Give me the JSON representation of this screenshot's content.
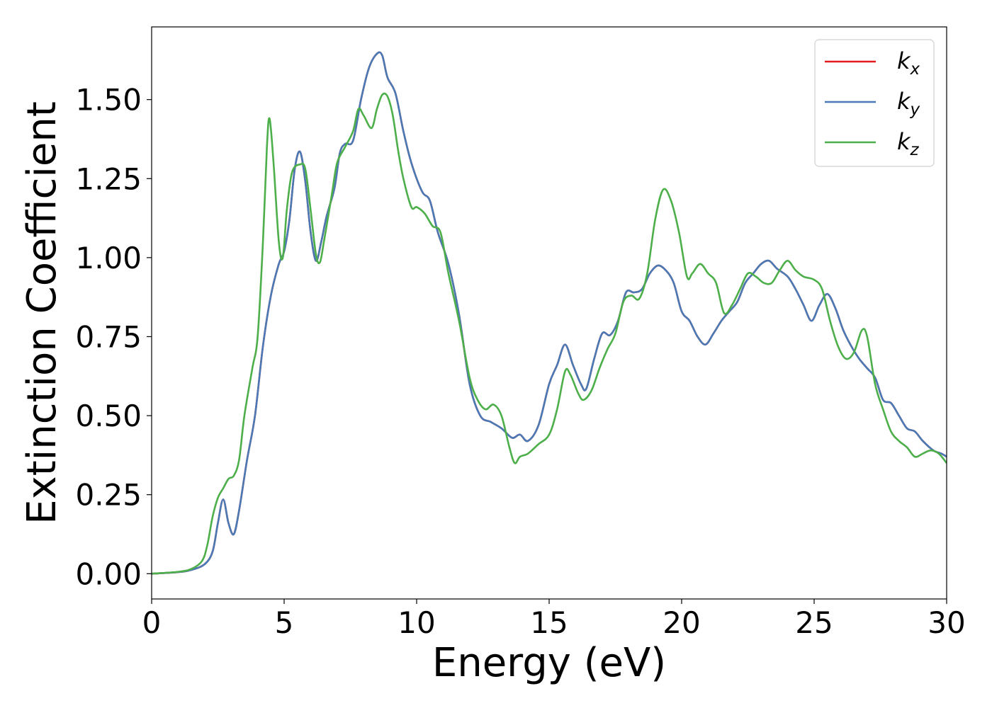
{
  "chart_data": {
    "type": "line",
    "xlabel": "Energy (eV)",
    "ylabel": "Extinction Coefficient",
    "xlim": [
      0,
      30
    ],
    "ylim": [
      -0.08,
      1.73
    ],
    "xticks": [
      0,
      5,
      10,
      15,
      20,
      25,
      30
    ],
    "xtick_labels": [
      "0",
      "5",
      "10",
      "15",
      "20",
      "25",
      "30"
    ],
    "yticks": [
      0,
      0.25,
      0.5,
      0.75,
      1.0,
      1.25,
      1.5
    ],
    "ytick_labels": [
      "0.00",
      "0.25",
      "0.50",
      "0.75",
      "1.00",
      "1.25",
      "1.50"
    ],
    "grid": false,
    "legend_position": "top-right",
    "series": [
      {
        "name": "kx",
        "label_base": "k",
        "label_sub": "x",
        "color": "#e41a1c",
        "points": [
          [
            0,
            0
          ],
          [
            1,
            0.005
          ],
          [
            1.5,
            0.012
          ],
          [
            2,
            0.03
          ],
          [
            2.3,
            0.07
          ],
          [
            2.5,
            0.16
          ],
          [
            2.7,
            0.235
          ],
          [
            2.9,
            0.16
          ],
          [
            3.1,
            0.125
          ],
          [
            3.3,
            0.2
          ],
          [
            3.6,
            0.36
          ],
          [
            3.9,
            0.5
          ],
          [
            4.2,
            0.72
          ],
          [
            4.5,
            0.88
          ],
          [
            4.8,
            0.98
          ],
          [
            5.0,
            1.02
          ],
          [
            5.2,
            1.12
          ],
          [
            5.4,
            1.28
          ],
          [
            5.6,
            1.335
          ],
          [
            5.8,
            1.24
          ],
          [
            6.0,
            1.08
          ],
          [
            6.2,
            0.99
          ],
          [
            6.4,
            1.05
          ],
          [
            6.6,
            1.13
          ],
          [
            6.9,
            1.22
          ],
          [
            7.1,
            1.33
          ],
          [
            7.3,
            1.36
          ],
          [
            7.6,
            1.37
          ],
          [
            7.9,
            1.5
          ],
          [
            8.2,
            1.6
          ],
          [
            8.5,
            1.645
          ],
          [
            8.7,
            1.64
          ],
          [
            8.9,
            1.57
          ],
          [
            9.2,
            1.52
          ],
          [
            9.5,
            1.4
          ],
          [
            9.8,
            1.3
          ],
          [
            10.2,
            1.21
          ],
          [
            10.5,
            1.18
          ],
          [
            10.8,
            1.08
          ],
          [
            11.2,
            0.98
          ],
          [
            11.6,
            0.82
          ],
          [
            12.0,
            0.6
          ],
          [
            12.4,
            0.5
          ],
          [
            12.8,
            0.48
          ],
          [
            13.2,
            0.46
          ],
          [
            13.6,
            0.43
          ],
          [
            13.9,
            0.44
          ],
          [
            14.2,
            0.42
          ],
          [
            14.6,
            0.47
          ],
          [
            15.0,
            0.6
          ],
          [
            15.3,
            0.66
          ],
          [
            15.6,
            0.725
          ],
          [
            15.9,
            0.66
          ],
          [
            16.2,
            0.6
          ],
          [
            16.4,
            0.585
          ],
          [
            16.7,
            0.68
          ],
          [
            17.0,
            0.76
          ],
          [
            17.3,
            0.755
          ],
          [
            17.6,
            0.8
          ],
          [
            17.9,
            0.89
          ],
          [
            18.2,
            0.89
          ],
          [
            18.5,
            0.9
          ],
          [
            18.8,
            0.95
          ],
          [
            19.1,
            0.975
          ],
          [
            19.4,
            0.96
          ],
          [
            19.7,
            0.92
          ],
          [
            20.0,
            0.83
          ],
          [
            20.3,
            0.8
          ],
          [
            20.6,
            0.75
          ],
          [
            20.9,
            0.725
          ],
          [
            21.2,
            0.76
          ],
          [
            21.5,
            0.8
          ],
          [
            21.8,
            0.83
          ],
          [
            22.1,
            0.86
          ],
          [
            22.4,
            0.92
          ],
          [
            22.7,
            0.95
          ],
          [
            23.0,
            0.98
          ],
          [
            23.3,
            0.99
          ],
          [
            23.6,
            0.965
          ],
          [
            24.0,
            0.94
          ],
          [
            24.3,
            0.9
          ],
          [
            24.6,
            0.85
          ],
          [
            24.9,
            0.8
          ],
          [
            25.2,
            0.85
          ],
          [
            25.5,
            0.885
          ],
          [
            25.8,
            0.84
          ],
          [
            26.1,
            0.77
          ],
          [
            26.4,
            0.72
          ],
          [
            26.7,
            0.68
          ],
          [
            27.0,
            0.65
          ],
          [
            27.3,
            0.62
          ],
          [
            27.6,
            0.55
          ],
          [
            27.9,
            0.54
          ],
          [
            28.2,
            0.5
          ],
          [
            28.5,
            0.46
          ],
          [
            28.8,
            0.45
          ],
          [
            29.1,
            0.42
          ],
          [
            29.5,
            0.39
          ],
          [
            29.8,
            0.38
          ],
          [
            30.0,
            0.37
          ]
        ]
      },
      {
        "name": "ky",
        "label_base": "k",
        "label_sub": "y",
        "color": "#4a7ab5",
        "points": [
          [
            0,
            0
          ],
          [
            1,
            0.005
          ],
          [
            1.5,
            0.012
          ],
          [
            2,
            0.03
          ],
          [
            2.3,
            0.07
          ],
          [
            2.5,
            0.16
          ],
          [
            2.7,
            0.235
          ],
          [
            2.9,
            0.16
          ],
          [
            3.1,
            0.125
          ],
          [
            3.3,
            0.2
          ],
          [
            3.6,
            0.36
          ],
          [
            3.9,
            0.5
          ],
          [
            4.2,
            0.72
          ],
          [
            4.5,
            0.88
          ],
          [
            4.8,
            0.98
          ],
          [
            5.0,
            1.02
          ],
          [
            5.2,
            1.12
          ],
          [
            5.4,
            1.28
          ],
          [
            5.6,
            1.335
          ],
          [
            5.8,
            1.24
          ],
          [
            6.0,
            1.08
          ],
          [
            6.2,
            0.99
          ],
          [
            6.4,
            1.05
          ],
          [
            6.6,
            1.13
          ],
          [
            6.9,
            1.22
          ],
          [
            7.1,
            1.33
          ],
          [
            7.3,
            1.36
          ],
          [
            7.6,
            1.37
          ],
          [
            7.9,
            1.5
          ],
          [
            8.2,
            1.6
          ],
          [
            8.5,
            1.645
          ],
          [
            8.7,
            1.64
          ],
          [
            8.9,
            1.57
          ],
          [
            9.2,
            1.52
          ],
          [
            9.5,
            1.4
          ],
          [
            9.8,
            1.3
          ],
          [
            10.2,
            1.21
          ],
          [
            10.5,
            1.18
          ],
          [
            10.8,
            1.08
          ],
          [
            11.2,
            0.98
          ],
          [
            11.6,
            0.82
          ],
          [
            12.0,
            0.6
          ],
          [
            12.4,
            0.5
          ],
          [
            12.8,
            0.48
          ],
          [
            13.2,
            0.46
          ],
          [
            13.6,
            0.43
          ],
          [
            13.9,
            0.44
          ],
          [
            14.2,
            0.42
          ],
          [
            14.6,
            0.47
          ],
          [
            15.0,
            0.6
          ],
          [
            15.3,
            0.66
          ],
          [
            15.6,
            0.725
          ],
          [
            15.9,
            0.66
          ],
          [
            16.2,
            0.6
          ],
          [
            16.4,
            0.585
          ],
          [
            16.7,
            0.68
          ],
          [
            17.0,
            0.76
          ],
          [
            17.3,
            0.755
          ],
          [
            17.6,
            0.8
          ],
          [
            17.9,
            0.89
          ],
          [
            18.2,
            0.89
          ],
          [
            18.5,
            0.9
          ],
          [
            18.8,
            0.95
          ],
          [
            19.1,
            0.975
          ],
          [
            19.4,
            0.96
          ],
          [
            19.7,
            0.92
          ],
          [
            20.0,
            0.83
          ],
          [
            20.3,
            0.8
          ],
          [
            20.6,
            0.75
          ],
          [
            20.9,
            0.725
          ],
          [
            21.2,
            0.76
          ],
          [
            21.5,
            0.8
          ],
          [
            21.8,
            0.83
          ],
          [
            22.1,
            0.86
          ],
          [
            22.4,
            0.92
          ],
          [
            22.7,
            0.95
          ],
          [
            23.0,
            0.98
          ],
          [
            23.3,
            0.99
          ],
          [
            23.6,
            0.965
          ],
          [
            24.0,
            0.94
          ],
          [
            24.3,
            0.9
          ],
          [
            24.6,
            0.85
          ],
          [
            24.9,
            0.8
          ],
          [
            25.2,
            0.85
          ],
          [
            25.5,
            0.885
          ],
          [
            25.8,
            0.84
          ],
          [
            26.1,
            0.77
          ],
          [
            26.4,
            0.72
          ],
          [
            26.7,
            0.68
          ],
          [
            27.0,
            0.65
          ],
          [
            27.3,
            0.62
          ],
          [
            27.6,
            0.55
          ],
          [
            27.9,
            0.54
          ],
          [
            28.2,
            0.5
          ],
          [
            28.5,
            0.46
          ],
          [
            28.8,
            0.45
          ],
          [
            29.1,
            0.42
          ],
          [
            29.5,
            0.39
          ],
          [
            29.8,
            0.38
          ],
          [
            30.0,
            0.37
          ]
        ]
      },
      {
        "name": "kz",
        "label_base": "k",
        "label_sub": "z",
        "color": "#4daf4a",
        "points": [
          [
            0,
            0
          ],
          [
            1,
            0.006
          ],
          [
            1.5,
            0.015
          ],
          [
            1.9,
            0.04
          ],
          [
            2.1,
            0.09
          ],
          [
            2.3,
            0.18
          ],
          [
            2.5,
            0.24
          ],
          [
            2.7,
            0.27
          ],
          [
            2.9,
            0.3
          ],
          [
            3.1,
            0.31
          ],
          [
            3.3,
            0.36
          ],
          [
            3.5,
            0.5
          ],
          [
            3.8,
            0.65
          ],
          [
            4.0,
            0.75
          ],
          [
            4.2,
            1.05
          ],
          [
            4.35,
            1.35
          ],
          [
            4.45,
            1.44
          ],
          [
            4.6,
            1.3
          ],
          [
            4.8,
            1.05
          ],
          [
            4.95,
            1.0
          ],
          [
            5.1,
            1.15
          ],
          [
            5.3,
            1.27
          ],
          [
            5.6,
            1.295
          ],
          [
            5.8,
            1.28
          ],
          [
            6.0,
            1.15
          ],
          [
            6.2,
            1.01
          ],
          [
            6.35,
            0.985
          ],
          [
            6.5,
            1.05
          ],
          [
            6.8,
            1.2
          ],
          [
            7.0,
            1.3
          ],
          [
            7.3,
            1.35
          ],
          [
            7.6,
            1.4
          ],
          [
            7.8,
            1.47
          ],
          [
            8.0,
            1.45
          ],
          [
            8.3,
            1.41
          ],
          [
            8.5,
            1.47
          ],
          [
            8.7,
            1.515
          ],
          [
            8.9,
            1.51
          ],
          [
            9.1,
            1.45
          ],
          [
            9.3,
            1.34
          ],
          [
            9.5,
            1.25
          ],
          [
            9.8,
            1.16
          ],
          [
            10.0,
            1.16
          ],
          [
            10.3,
            1.14
          ],
          [
            10.6,
            1.1
          ],
          [
            10.9,
            1.08
          ],
          [
            11.2,
            0.95
          ],
          [
            11.6,
            0.8
          ],
          [
            12.0,
            0.62
          ],
          [
            12.3,
            0.55
          ],
          [
            12.6,
            0.52
          ],
          [
            12.9,
            0.535
          ],
          [
            13.2,
            0.5
          ],
          [
            13.5,
            0.4
          ],
          [
            13.7,
            0.35
          ],
          [
            13.9,
            0.37
          ],
          [
            14.2,
            0.38
          ],
          [
            14.6,
            0.41
          ],
          [
            15.0,
            0.44
          ],
          [
            15.3,
            0.52
          ],
          [
            15.6,
            0.64
          ],
          [
            15.8,
            0.63
          ],
          [
            16.1,
            0.57
          ],
          [
            16.3,
            0.55
          ],
          [
            16.6,
            0.58
          ],
          [
            16.9,
            0.65
          ],
          [
            17.2,
            0.71
          ],
          [
            17.5,
            0.76
          ],
          [
            17.8,
            0.86
          ],
          [
            18.1,
            0.88
          ],
          [
            18.4,
            0.87
          ],
          [
            18.7,
            0.95
          ],
          [
            19.0,
            1.12
          ],
          [
            19.3,
            1.215
          ],
          [
            19.6,
            1.18
          ],
          [
            19.9,
            1.08
          ],
          [
            20.2,
            0.94
          ],
          [
            20.4,
            0.95
          ],
          [
            20.7,
            0.98
          ],
          [
            21.0,
            0.95
          ],
          [
            21.3,
            0.92
          ],
          [
            21.6,
            0.825
          ],
          [
            21.9,
            0.85
          ],
          [
            22.2,
            0.9
          ],
          [
            22.5,
            0.95
          ],
          [
            22.8,
            0.94
          ],
          [
            23.1,
            0.92
          ],
          [
            23.4,
            0.92
          ],
          [
            23.7,
            0.96
          ],
          [
            24.0,
            0.99
          ],
          [
            24.3,
            0.96
          ],
          [
            24.6,
            0.94
          ],
          [
            25.0,
            0.93
          ],
          [
            25.3,
            0.9
          ],
          [
            25.6,
            0.8
          ],
          [
            25.9,
            0.72
          ],
          [
            26.2,
            0.68
          ],
          [
            26.5,
            0.7
          ],
          [
            26.8,
            0.77
          ],
          [
            27.0,
            0.75
          ],
          [
            27.3,
            0.6
          ],
          [
            27.6,
            0.52
          ],
          [
            27.9,
            0.45
          ],
          [
            28.2,
            0.42
          ],
          [
            28.5,
            0.4
          ],
          [
            28.8,
            0.37
          ],
          [
            29.1,
            0.38
          ],
          [
            29.4,
            0.39
          ],
          [
            29.7,
            0.38
          ],
          [
            30.0,
            0.35
          ]
        ]
      }
    ]
  }
}
